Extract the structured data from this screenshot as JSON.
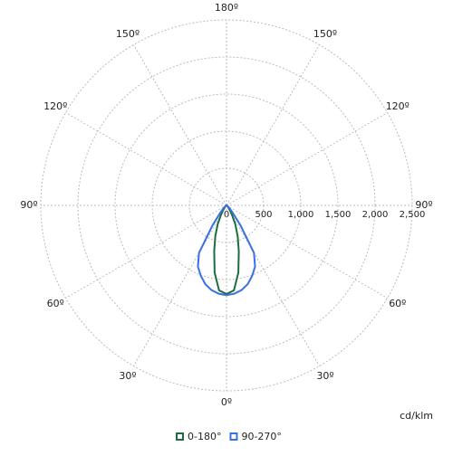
{
  "chart_data": {
    "type": "polar",
    "x": [
      0,
      5,
      10,
      15,
      20,
      25,
      30,
      35,
      40,
      45,
      50,
      60,
      70,
      80,
      90
    ],
    "series": [
      {
        "name": "0-180°",
        "color": "#1b6e3c",
        "values": [
          1195,
          1150,
          920,
          640,
          440,
          280,
          150,
          80,
          40,
          25,
          15,
          8,
          4,
          2,
          0
        ]
      },
      {
        "name": "90-270°",
        "color": "#3b6fe2",
        "values": [
          1210,
          1195,
          1160,
          1100,
          1010,
          910,
          740,
          330,
          130,
          70,
          40,
          15,
          6,
          2,
          0
        ]
      }
    ],
    "rlim": [
      0,
      2500
    ],
    "rticks": [
      0,
      500,
      {
        "value": 1000,
        "label": "1,000"
      },
      {
        "value": 1500,
        "label": "1,500"
      },
      {
        "value": 2000,
        "label": "2,000"
      },
      {
        "value": 2500,
        "label": "2,500"
      }
    ],
    "theta_ticks": [
      {
        "value": 0,
        "label": "0º"
      },
      {
        "value": 30,
        "label": "30º"
      },
      {
        "value": 60,
        "label": "60º"
      },
      {
        "value": 90,
        "label": "90º"
      },
      {
        "value": 120,
        "label": "120º"
      },
      {
        "value": 150,
        "label": "150º"
      },
      {
        "value": 180,
        "label": "180º"
      }
    ],
    "unit_label": "cd/klm",
    "grid": true
  }
}
